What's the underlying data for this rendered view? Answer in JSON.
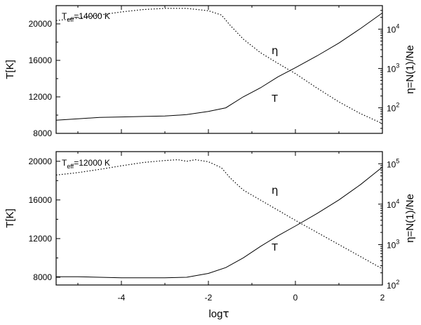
{
  "chart_data": [
    {
      "type": "line",
      "annotation": "Teff=14000 K",
      "ylabel": "T[K]",
      "y2label": "η=N(1)/Ne",
      "xlim": [
        -5.5,
        2
      ],
      "ylim": [
        8000,
        22000
      ],
      "y2scale": "log",
      "y2lim_log10": [
        1.35,
        4.6
      ],
      "y_ticks": [
        "8000",
        "12000",
        "16000",
        "20000"
      ],
      "y2_ticks": [
        "10^2",
        "10^3",
        "10^4"
      ],
      "series": [
        {
          "name": "T",
          "axis": "left",
          "x": [
            -5.5,
            -5.0,
            -4.5,
            -4.0,
            -3.5,
            -3.0,
            -2.5,
            -2.0,
            -1.6,
            -1.2,
            -0.8,
            -0.4,
            0.0,
            0.5,
            1.0,
            1.5,
            2.0
          ],
          "y": [
            9450,
            9600,
            9750,
            9800,
            9850,
            9900,
            10050,
            10400,
            10800,
            12000,
            13000,
            14200,
            15200,
            16500,
            17900,
            19500,
            21200
          ]
        },
        {
          "name": "η",
          "axis": "right",
          "x": [
            -5.5,
            -5.0,
            -4.5,
            -4.0,
            -3.5,
            -3.0,
            -2.5,
            -2.0,
            -1.7,
            -1.5,
            -1.2,
            -0.8,
            -0.4,
            0.0,
            0.5,
            1.0,
            1.5,
            2.0
          ],
          "y_log10": [
            4.22,
            4.28,
            4.36,
            4.44,
            4.5,
            4.53,
            4.53,
            4.47,
            4.36,
            4.1,
            3.75,
            3.4,
            3.13,
            2.87,
            2.5,
            2.15,
            1.85,
            1.6
          ]
        }
      ],
      "labels": {
        "t": "T",
        "eta": "η"
      }
    },
    {
      "type": "line",
      "annotation": "Teff=12000 K",
      "ylabel": "T[K]",
      "y2label": "η=N(1)/Ne",
      "xlabel": "logτ",
      "xlim": [
        -5.5,
        2
      ],
      "ylim": [
        7200,
        21000
      ],
      "y2scale": "log",
      "y2lim_log10": [
        2,
        5.3
      ],
      "x_ticks": [
        "-4",
        "-2",
        "0",
        "2"
      ],
      "y_ticks": [
        "8000",
        "12000",
        "16000",
        "20000"
      ],
      "y2_ticks": [
        "10^2",
        "10^3",
        "10^4",
        "10^5"
      ],
      "series": [
        {
          "name": "T",
          "axis": "left",
          "x": [
            -5.5,
            -5.0,
            -4.5,
            -4.0,
            -3.5,
            -3.0,
            -2.5,
            -2.0,
            -1.6,
            -1.2,
            -0.8,
            -0.4,
            0.0,
            0.5,
            1.0,
            1.5,
            2.0
          ],
          "y": [
            8050,
            8050,
            8000,
            7950,
            7950,
            7950,
            8000,
            8400,
            9000,
            10000,
            11200,
            12300,
            13300,
            14600,
            16000,
            17600,
            19400
          ]
        },
        {
          "name": "η",
          "axis": "right",
          "x": [
            -5.5,
            -5.0,
            -4.5,
            -4.0,
            -3.5,
            -3.0,
            -2.7,
            -2.5,
            -2.3,
            -2.0,
            -1.7,
            -1.5,
            -1.2,
            -0.8,
            -0.4,
            0.0,
            0.5,
            1.0,
            1.5,
            2.0
          ],
          "y_log10": [
            4.72,
            4.78,
            4.86,
            4.95,
            5.03,
            5.08,
            5.1,
            5.06,
            5.1,
            5.05,
            4.9,
            4.65,
            4.35,
            4.1,
            3.85,
            3.6,
            3.3,
            3.0,
            2.7,
            2.4
          ]
        }
      ],
      "labels": {
        "t": "T",
        "eta": "η"
      }
    }
  ]
}
